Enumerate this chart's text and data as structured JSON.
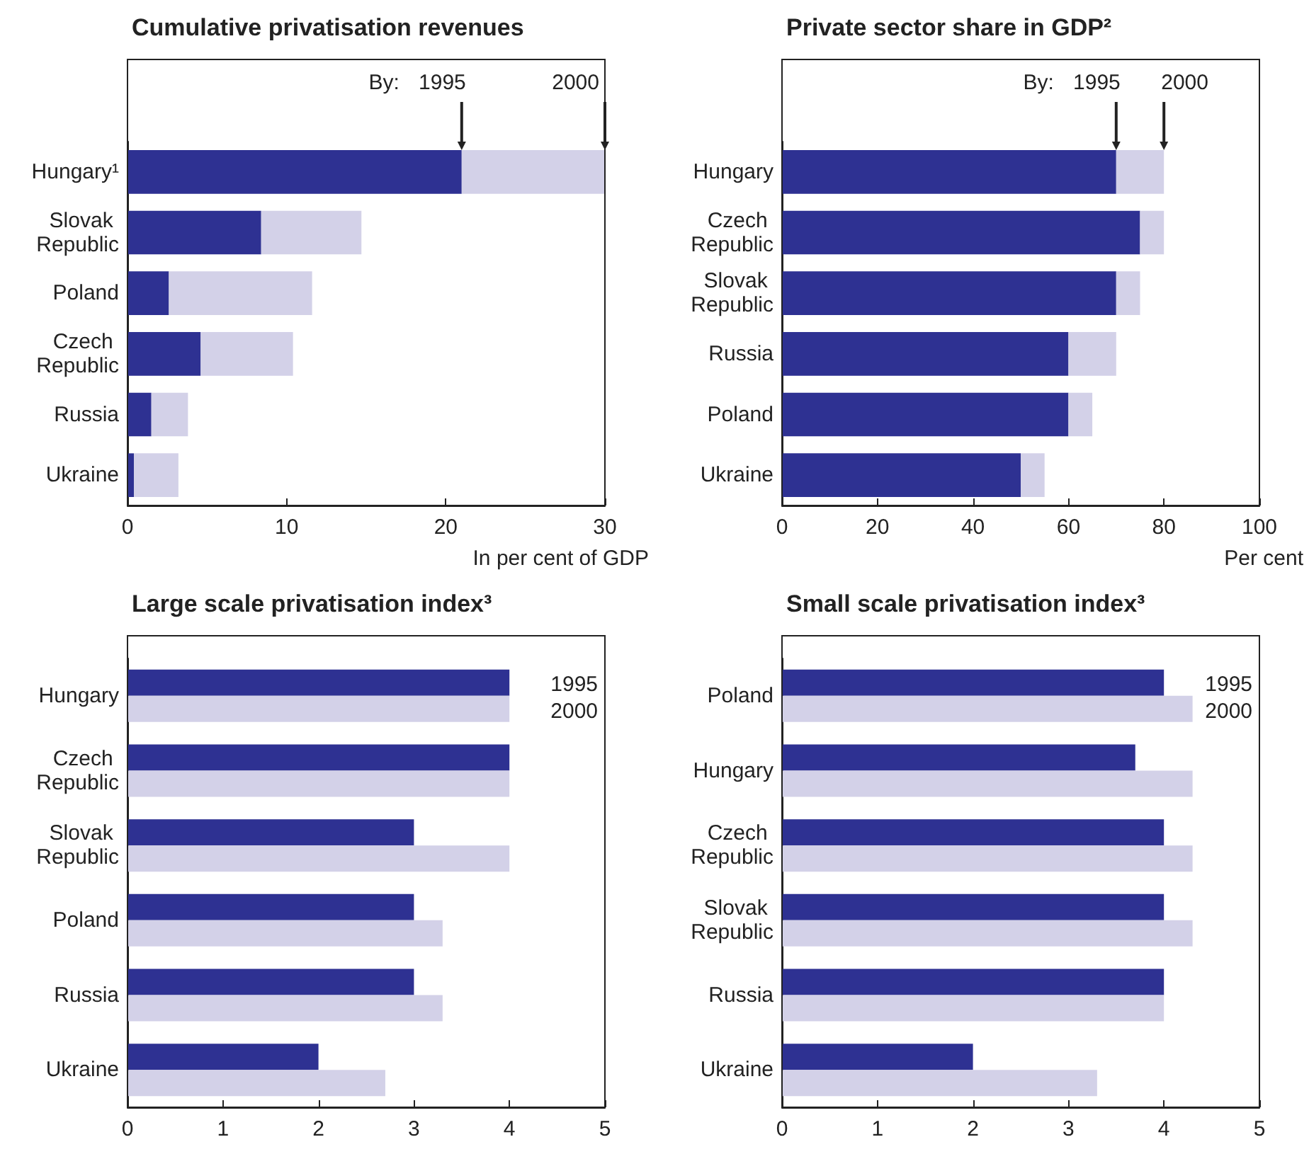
{
  "chart_data": [
    {
      "type": "bar",
      "orientation": "horizontal",
      "stacked": true,
      "title": "Cumulative privatisation revenues",
      "xlabel": "In per cent of GDP",
      "annotations": [
        "By:"
      ],
      "legend": "top right",
      "grid": false,
      "categories": [
        "Hungary¹",
        "Slovak Republic",
        "Poland",
        "Czech Republic",
        "Russia",
        "Ukraine"
      ],
      "series": [
        {
          "name": "1995",
          "color": "#2e3192",
          "values": [
            21,
            8.4,
            2.6,
            4.6,
            1.5,
            0.4
          ]
        },
        {
          "name": "2000",
          "color": "#d3d1e8",
          "values": [
            9,
            6.3,
            9.0,
            5.8,
            2.3,
            2.8
          ]
        }
      ],
      "xlim": [
        0,
        30
      ],
      "xticks": [
        0,
        10,
        20,
        30
      ]
    },
    {
      "type": "bar",
      "orientation": "horizontal",
      "stacked": true,
      "title": "Private sector share in GDP²",
      "xlabel": "Per cent",
      "annotations": [
        "By:"
      ],
      "legend": "top right",
      "grid": false,
      "categories": [
        "Hungary",
        "Czech Republic",
        "Slovak Republic",
        "Russia",
        "Poland",
        "Ukraine"
      ],
      "series": [
        {
          "name": "1995",
          "color": "#2e3192",
          "values": [
            70,
            75,
            70,
            60,
            60,
            50
          ]
        },
        {
          "name": "2000",
          "color": "#d3d1e8",
          "values": [
            10,
            5,
            5,
            10,
            5,
            5
          ]
        }
      ],
      "xlim": [
        0,
        100
      ],
      "xticks": [
        0,
        20,
        40,
        60,
        80,
        100
      ]
    },
    {
      "type": "bar",
      "orientation": "horizontal",
      "title": "Large scale privatisation index³",
      "legend": "top right",
      "grid": false,
      "categories": [
        "Hungary",
        "Czech Republic",
        "Slovak Republic",
        "Poland",
        "Russia",
        "Ukraine"
      ],
      "series": [
        {
          "name": "1995",
          "color": "#2e3192",
          "values": [
            4,
            4,
            3,
            3,
            3,
            2
          ]
        },
        {
          "name": "2000",
          "color": "#d3d1e8",
          "values": [
            4,
            4,
            4,
            3.3,
            3.3,
            2.7
          ]
        }
      ],
      "xlim": [
        0,
        5
      ],
      "xticks": [
        0,
        1,
        2,
        3,
        4,
        5
      ]
    },
    {
      "type": "bar",
      "orientation": "horizontal",
      "title": "Small scale privatisation index³",
      "legend": "top right",
      "grid": false,
      "categories": [
        "Poland",
        "Hungary",
        "Czech Republic",
        "Slovak Republic",
        "Russia",
        "Ukraine"
      ],
      "series": [
        {
          "name": "1995",
          "color": "#2e3192",
          "values": [
            4,
            3.7,
            4,
            4,
            4,
            2
          ]
        },
        {
          "name": "2000",
          "color": "#d3d1e8",
          "values": [
            4.3,
            4.3,
            4.3,
            4.3,
            4,
            3.3
          ]
        }
      ],
      "xlim": [
        0,
        5
      ],
      "xticks": [
        0,
        1,
        2,
        3,
        4,
        5
      ]
    }
  ]
}
